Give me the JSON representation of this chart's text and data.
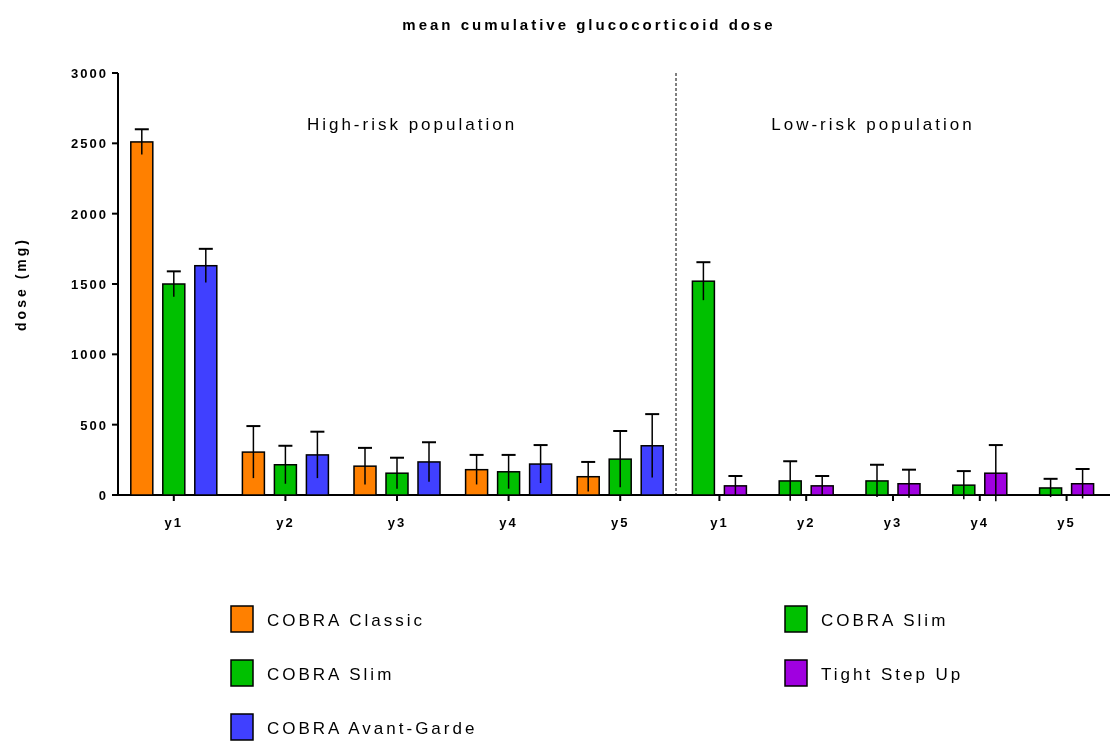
{
  "chart_data": {
    "type": "bar",
    "title": "mean cumulative glucocorticoid dose",
    "ylabel": "dose (mg)",
    "categories": [
      "y1",
      "y2",
      "y3",
      "y4",
      "y5",
      "y1",
      "y2",
      "y3",
      "y4",
      "y5"
    ],
    "series": [
      {
        "name": "COBRA Classic",
        "color": "#ff8000",
        "values": [
          2510,
          305,
          205,
          180,
          130,
          null,
          null,
          null,
          null,
          null
        ],
        "errors": [
          90,
          185,
          130,
          105,
          105,
          null,
          null,
          null,
          null,
          null
        ]
      },
      {
        "name": "COBRA Slim",
        "color": "#00c000",
        "values": [
          1500,
          215,
          155,
          165,
          255,
          null,
          null,
          null,
          null,
          null
        ],
        "errors": [
          90,
          135,
          110,
          120,
          200,
          null,
          null,
          null,
          null,
          null
        ]
      },
      {
        "name": "COBRA Avant-Garde",
        "color": "#4040ff",
        "values": [
          1630,
          285,
          235,
          220,
          350,
          null,
          null,
          null,
          null,
          null
        ],
        "errors": [
          120,
          165,
          140,
          135,
          225,
          null,
          null,
          null,
          null,
          null
        ]
      },
      {
        "name": "COBRA Slim",
        "color": "#00c000",
        "values": [
          null,
          null,
          null,
          null,
          null,
          1520,
          100,
          100,
          70,
          50
        ],
        "errors": [
          null,
          null,
          null,
          null,
          null,
          135,
          140,
          115,
          100,
          65
        ]
      },
      {
        "name": "Tight Step Up",
        "color": "#a000e0",
        "values": [
          null,
          null,
          null,
          null,
          null,
          65,
          65,
          80,
          155,
          80
        ],
        "errors": [
          null,
          null,
          null,
          null,
          null,
          70,
          70,
          100,
          200,
          105
        ]
      }
    ],
    "ylim": [
      0,
      3000
    ],
    "yticks": [
      0,
      500,
      1000,
      1500,
      2000,
      2500,
      3000
    ],
    "annotations": [
      "High-risk population",
      "Low-risk population"
    ],
    "legend": "bottom",
    "grid": false
  }
}
